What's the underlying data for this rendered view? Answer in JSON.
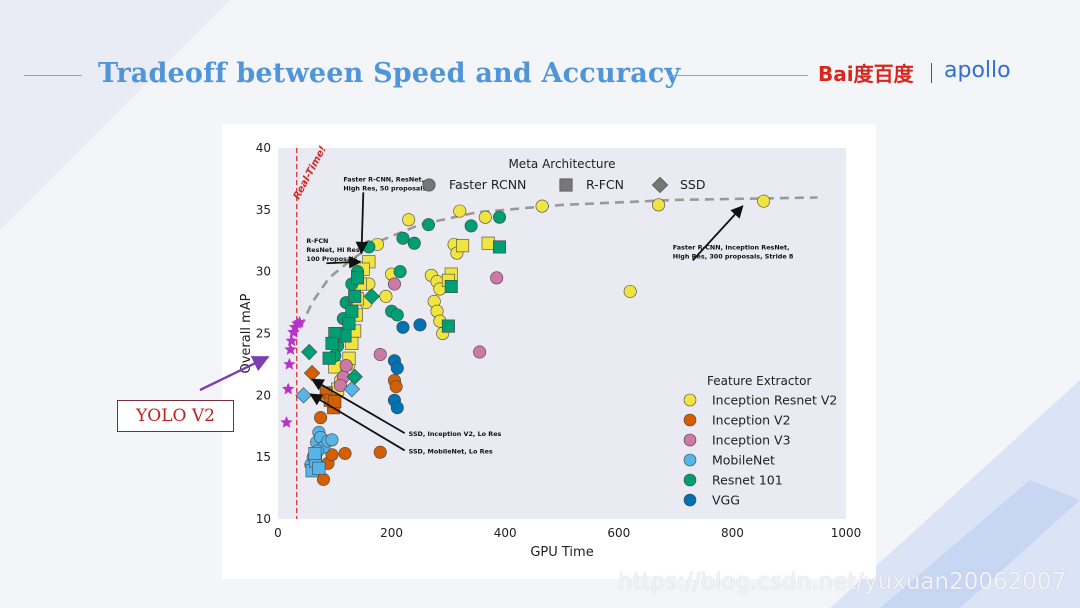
{
  "slide": {
    "title": "Tradeoff between Speed and Accuracy",
    "brand_baidu": "Bai度百度",
    "brand_apollo": "apollo",
    "callout": "YOLO V2",
    "watermark": "https://blog.csdn.net/yuxuan20062007"
  },
  "colors": {
    "title": "#4f95d8",
    "inception_resnet_v2": "#f0e442",
    "inception_v2": "#d55e00",
    "inception_v3": "#cc79a7",
    "mobilenet": "#56b4e9",
    "resnet101": "#009e73",
    "vgg": "#0072b2",
    "yolo_star": "#b533c8",
    "yolo_arrow": "#7b3fb0"
  },
  "chart_data": {
    "type": "scatter",
    "xlabel": "GPU Time",
    "ylabel": "Overall mAP",
    "xlim": [
      0,
      1000
    ],
    "ylim": [
      10,
      40
    ],
    "xticks": [
      0,
      200,
      400,
      600,
      800,
      1000
    ],
    "yticks": [
      10,
      15,
      20,
      25,
      30,
      35,
      40
    ],
    "grid": false,
    "realtime_label": "Real-Time!",
    "realtime_x": 33,
    "meta_legend_title": "Meta Architecture",
    "meta_legend": [
      {
        "name": "Faster RCNN",
        "marker": "circle"
      },
      {
        "name": "R-FCN",
        "marker": "square"
      },
      {
        "name": "SSD",
        "marker": "diamond"
      }
    ],
    "feature_legend_title": "Feature Extractor",
    "feature_legend": [
      {
        "name": "Inception Resnet V2",
        "key": "inception_resnet_v2"
      },
      {
        "name": "Inception V2",
        "key": "inception_v2"
      },
      {
        "name": "Inception V3",
        "key": "inception_v3"
      },
      {
        "name": "MobileNet",
        "key": "mobilenet"
      },
      {
        "name": "Resnet 101",
        "key": "resnet101"
      },
      {
        "name": "VGG",
        "key": "vgg"
      }
    ],
    "frontier": [
      [
        40,
        25.5
      ],
      [
        60,
        27.5
      ],
      [
        90,
        29.5
      ],
      [
        130,
        31
      ],
      [
        180,
        32.5
      ],
      [
        250,
        33.8
      ],
      [
        350,
        34.8
      ],
      [
        500,
        35.4
      ],
      [
        700,
        35.8
      ],
      [
        950,
        36
      ]
    ],
    "annotations": [
      {
        "lines": [
          "Faster R-CNN, ResNet,",
          "High Res, 50 proposals"
        ],
        "tx": 115,
        "ty": 37.3,
        "ax": 147,
        "ay": 31.5
      },
      {
        "lines": [
          "R-FCN",
          "ResNet, Hi Res,",
          "100 Proposals"
        ],
        "tx": 50,
        "ty": 32.3,
        "ax": 145,
        "ay": 30.8
      },
      {
        "lines": [
          "Faster R-CNN, Inception ResNet,",
          "High Res, 300 proposals, Stride 8"
        ],
        "tx": 695,
        "ty": 31.8,
        "ax": 818,
        "ay": 35.3
      },
      {
        "lines": [
          "SSD, Inception V2, Lo Res"
        ],
        "tx": 230,
        "ty": 16.7,
        "ax": 60,
        "ay": 21.3
      },
      {
        "lines": [
          "SSD, MobileNet, Lo Res"
        ],
        "tx": 230,
        "ty": 15.3,
        "ax": 57,
        "ay": 20.1
      }
    ],
    "yolo_points": [
      [
        15,
        17.8
      ],
      [
        18,
        20.5
      ],
      [
        20,
        22.5
      ],
      [
        22,
        23.7
      ],
      [
        24,
        24.4
      ],
      [
        27,
        25.1
      ],
      [
        30,
        25.5
      ],
      [
        34,
        25.8
      ],
      [
        38,
        25.9
      ]
    ],
    "points": [
      {
        "x": 855,
        "y": 35.7,
        "f": "inception_resnet_v2",
        "m": "circle"
      },
      {
        "x": 670,
        "y": 35.4,
        "f": "inception_resnet_v2",
        "m": "circle"
      },
      {
        "x": 620,
        "y": 28.4,
        "f": "inception_resnet_v2",
        "m": "circle"
      },
      {
        "x": 465,
        "y": 35.3,
        "f": "inception_resnet_v2",
        "m": "circle"
      },
      {
        "x": 320,
        "y": 34.9,
        "f": "inception_resnet_v2",
        "m": "circle"
      },
      {
        "x": 365,
        "y": 34.4,
        "f": "inception_resnet_v2",
        "m": "circle"
      },
      {
        "x": 230,
        "y": 34.2,
        "f": "inception_resnet_v2",
        "m": "circle"
      },
      {
        "x": 175,
        "y": 32.2,
        "f": "inception_resnet_v2",
        "m": "circle"
      },
      {
        "x": 310,
        "y": 32.2,
        "f": "inception_resnet_v2",
        "m": "circle"
      },
      {
        "x": 315,
        "y": 31.5,
        "f": "inception_resnet_v2",
        "m": "circle"
      },
      {
        "x": 200,
        "y": 29.8,
        "f": "inception_resnet_v2",
        "m": "circle"
      },
      {
        "x": 270,
        "y": 29.7,
        "f": "inception_resnet_v2",
        "m": "circle"
      },
      {
        "x": 280,
        "y": 29.2,
        "f": "inception_resnet_v2",
        "m": "circle"
      },
      {
        "x": 285,
        "y": 28.6,
        "f": "inception_resnet_v2",
        "m": "circle"
      },
      {
        "x": 190,
        "y": 28.0,
        "f": "inception_resnet_v2",
        "m": "circle"
      },
      {
        "x": 275,
        "y": 27.6,
        "f": "inception_resnet_v2",
        "m": "circle"
      },
      {
        "x": 280,
        "y": 26.8,
        "f": "inception_resnet_v2",
        "m": "circle"
      },
      {
        "x": 285,
        "y": 26.0,
        "f": "inception_resnet_v2",
        "m": "circle"
      },
      {
        "x": 290,
        "y": 25.0,
        "f": "inception_resnet_v2",
        "m": "circle"
      },
      {
        "x": 160,
        "y": 29.0,
        "f": "inception_resnet_v2",
        "m": "circle"
      },
      {
        "x": 155,
        "y": 27.5,
        "f": "inception_resnet_v2",
        "m": "circle"
      },
      {
        "x": 125,
        "y": 22.5,
        "f": "inception_resnet_v2",
        "m": "circle"
      },
      {
        "x": 110,
        "y": 21.2,
        "f": "inception_resnet_v2",
        "m": "circle"
      },
      {
        "x": 95,
        "y": 19.8,
        "f": "inception_resnet_v2",
        "m": "circle"
      },
      {
        "x": 370,
        "y": 32.3,
        "f": "inception_resnet_v2",
        "m": "square"
      },
      {
        "x": 325,
        "y": 32.1,
        "f": "inception_resnet_v2",
        "m": "square"
      },
      {
        "x": 305,
        "y": 29.8,
        "f": "inception_resnet_v2",
        "m": "square"
      },
      {
        "x": 300,
        "y": 29.3,
        "f": "inception_resnet_v2",
        "m": "square"
      },
      {
        "x": 160,
        "y": 30.8,
        "f": "inception_resnet_v2",
        "m": "square"
      },
      {
        "x": 150,
        "y": 30.2,
        "f": "inception_resnet_v2",
        "m": "square"
      },
      {
        "x": 145,
        "y": 29.0,
        "f": "inception_resnet_v2",
        "m": "square"
      },
      {
        "x": 140,
        "y": 27.8,
        "f": "inception_resnet_v2",
        "m": "square"
      },
      {
        "x": 138,
        "y": 26.5,
        "f": "inception_resnet_v2",
        "m": "square"
      },
      {
        "x": 135,
        "y": 25.2,
        "f": "inception_resnet_v2",
        "m": "square"
      },
      {
        "x": 130,
        "y": 24.2,
        "f": "inception_resnet_v2",
        "m": "square"
      },
      {
        "x": 125,
        "y": 23.0,
        "f": "inception_resnet_v2",
        "m": "square"
      },
      {
        "x": 100,
        "y": 22.3,
        "f": "inception_resnet_v2",
        "m": "square"
      },
      {
        "x": 105,
        "y": 20.5,
        "f": "inception_resnet_v2",
        "m": "square"
      },
      {
        "x": 60,
        "y": 21.8,
        "f": "inception_v2",
        "m": "diamond"
      },
      {
        "x": 75,
        "y": 18.2,
        "f": "inception_v2",
        "m": "circle"
      },
      {
        "x": 80,
        "y": 13.2,
        "f": "inception_v2",
        "m": "circle"
      },
      {
        "x": 88,
        "y": 14.5,
        "f": "inception_v2",
        "m": "circle"
      },
      {
        "x": 95,
        "y": 15.2,
        "f": "inception_v2",
        "m": "circle"
      },
      {
        "x": 118,
        "y": 15.3,
        "f": "inception_v2",
        "m": "circle"
      },
      {
        "x": 180,
        "y": 15.4,
        "f": "inception_v2",
        "m": "circle"
      },
      {
        "x": 205,
        "y": 21.2,
        "f": "inception_v2",
        "m": "circle"
      },
      {
        "x": 208,
        "y": 20.7,
        "f": "inception_v2",
        "m": "circle"
      },
      {
        "x": 85,
        "y": 20.2,
        "f": "inception_v2",
        "m": "square"
      },
      {
        "x": 92,
        "y": 19.6,
        "f": "inception_v2",
        "m": "square"
      },
      {
        "x": 98,
        "y": 19.0,
        "f": "inception_v2",
        "m": "square"
      },
      {
        "x": 100,
        "y": 19.5,
        "f": "inception_v2",
        "m": "square"
      },
      {
        "x": 385,
        "y": 29.5,
        "f": "inception_v3",
        "m": "circle"
      },
      {
        "x": 205,
        "y": 29.0,
        "f": "inception_v3",
        "m": "circle"
      },
      {
        "x": 355,
        "y": 23.5,
        "f": "inception_v3",
        "m": "circle"
      },
      {
        "x": 180,
        "y": 23.3,
        "f": "inception_v3",
        "m": "circle"
      },
      {
        "x": 115,
        "y": 21.5,
        "f": "inception_v3",
        "m": "circle"
      },
      {
        "x": 110,
        "y": 20.8,
        "f": "inception_v3",
        "m": "circle"
      },
      {
        "x": 120,
        "y": 22.4,
        "f": "inception_v3",
        "m": "circle"
      },
      {
        "x": 45,
        "y": 20.0,
        "f": "mobilenet",
        "m": "diamond"
      },
      {
        "x": 58,
        "y": 14.4,
        "f": "mobilenet",
        "m": "circle"
      },
      {
        "x": 62,
        "y": 15.0,
        "f": "mobilenet",
        "m": "circle"
      },
      {
        "x": 68,
        "y": 16.2,
        "f": "mobilenet",
        "m": "circle"
      },
      {
        "x": 72,
        "y": 17.0,
        "f": "mobilenet",
        "m": "circle"
      },
      {
        "x": 75,
        "y": 16.6,
        "f": "mobilenet",
        "m": "circle"
      },
      {
        "x": 80,
        "y": 15.8,
        "f": "mobilenet",
        "m": "circle"
      },
      {
        "x": 88,
        "y": 16.3,
        "f": "mobilenet",
        "m": "circle"
      },
      {
        "x": 95,
        "y": 16.4,
        "f": "mobilenet",
        "m": "circle"
      },
      {
        "x": 70,
        "y": 15.5,
        "f": "mobilenet",
        "m": "circle"
      },
      {
        "x": 60,
        "y": 13.9,
        "f": "mobilenet",
        "m": "square"
      },
      {
        "x": 66,
        "y": 14.7,
        "f": "mobilenet",
        "m": "square"
      },
      {
        "x": 72,
        "y": 14.1,
        "f": "mobilenet",
        "m": "square"
      },
      {
        "x": 65,
        "y": 15.3,
        "f": "mobilenet",
        "m": "square"
      },
      {
        "x": 130,
        "y": 20.5,
        "f": "mobilenet",
        "m": "diamond"
      },
      {
        "x": 55,
        "y": 23.5,
        "f": "resnet101",
        "m": "diamond"
      },
      {
        "x": 135,
        "y": 21.5,
        "f": "resnet101",
        "m": "diamond"
      },
      {
        "x": 165,
        "y": 28.0,
        "f": "resnet101",
        "m": "diamond"
      },
      {
        "x": 160,
        "y": 32.0,
        "f": "resnet101",
        "m": "circle"
      },
      {
        "x": 220,
        "y": 32.7,
        "f": "resnet101",
        "m": "circle"
      },
      {
        "x": 240,
        "y": 32.3,
        "f": "resnet101",
        "m": "circle"
      },
      {
        "x": 265,
        "y": 33.8,
        "f": "resnet101",
        "m": "circle"
      },
      {
        "x": 340,
        "y": 33.7,
        "f": "resnet101",
        "m": "circle"
      },
      {
        "x": 390,
        "y": 34.4,
        "f": "resnet101",
        "m": "circle"
      },
      {
        "x": 215,
        "y": 30.0,
        "f": "resnet101",
        "m": "circle"
      },
      {
        "x": 200,
        "y": 26.8,
        "f": "resnet101",
        "m": "circle"
      },
      {
        "x": 210,
        "y": 26.5,
        "f": "resnet101",
        "m": "circle"
      },
      {
        "x": 140,
        "y": 30.0,
        "f": "resnet101",
        "m": "circle"
      },
      {
        "x": 130,
        "y": 29.0,
        "f": "resnet101",
        "m": "circle"
      },
      {
        "x": 120,
        "y": 27.5,
        "f": "resnet101",
        "m": "circle"
      },
      {
        "x": 115,
        "y": 26.2,
        "f": "resnet101",
        "m": "circle"
      },
      {
        "x": 110,
        "y": 25.0,
        "f": "resnet101",
        "m": "circle"
      },
      {
        "x": 105,
        "y": 24.0,
        "f": "resnet101",
        "m": "circle"
      },
      {
        "x": 100,
        "y": 23.2,
        "f": "resnet101",
        "m": "circle"
      },
      {
        "x": 390,
        "y": 32.0,
        "f": "resnet101",
        "m": "square"
      },
      {
        "x": 305,
        "y": 28.8,
        "f": "resnet101",
        "m": "square"
      },
      {
        "x": 300,
        "y": 25.6,
        "f": "resnet101",
        "m": "square"
      },
      {
        "x": 140,
        "y": 29.5,
        "f": "resnet101",
        "m": "square"
      },
      {
        "x": 135,
        "y": 28.0,
        "f": "resnet101",
        "m": "square"
      },
      {
        "x": 130,
        "y": 26.8,
        "f": "resnet101",
        "m": "square"
      },
      {
        "x": 125,
        "y": 25.8,
        "f": "resnet101",
        "m": "square"
      },
      {
        "x": 118,
        "y": 24.8,
        "f": "resnet101",
        "m": "square"
      },
      {
        "x": 100,
        "y": 25.0,
        "f": "resnet101",
        "m": "square"
      },
      {
        "x": 95,
        "y": 24.2,
        "f": "resnet101",
        "m": "square"
      },
      {
        "x": 90,
        "y": 23.0,
        "f": "resnet101",
        "m": "square"
      },
      {
        "x": 220,
        "y": 25.5,
        "f": "vgg",
        "m": "circle"
      },
      {
        "x": 250,
        "y": 25.7,
        "f": "vgg",
        "m": "circle"
      },
      {
        "x": 205,
        "y": 22.8,
        "f": "vgg",
        "m": "circle"
      },
      {
        "x": 210,
        "y": 22.2,
        "f": "vgg",
        "m": "circle"
      },
      {
        "x": 205,
        "y": 19.6,
        "f": "vgg",
        "m": "circle"
      },
      {
        "x": 210,
        "y": 19.0,
        "f": "vgg",
        "m": "circle"
      }
    ]
  }
}
